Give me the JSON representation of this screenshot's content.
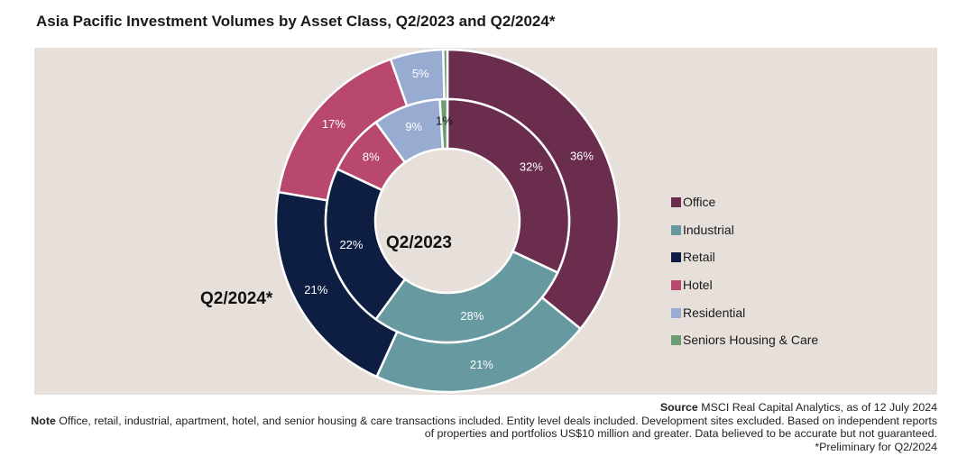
{
  "header": {
    "title": "Asia Pacific Investment Volumes by Asset Class, Q2/2023 and Q2/2024*"
  },
  "chart_data": {
    "type": "pie",
    "subtype": "nested-donut",
    "title": "Asia Pacific Investment Volumes by Asset Class, Q2/2023 and Q2/2024*",
    "categories": [
      "Office",
      "Industrial",
      "Retail",
      "Hotel",
      "Residential",
      "Seniors Housing & Care"
    ],
    "colors": [
      "#6b2d4e",
      "#6699a0",
      "#0d1e42",
      "#b8486e",
      "#98abd1",
      "#6a9e72"
    ],
    "series": [
      {
        "name": "Q2/2023",
        "ring": "inner",
        "values": [
          32,
          28,
          22,
          8,
          9,
          1
        ],
        "labels": [
          "32%",
          "28%",
          "22%",
          "8%",
          "9%",
          "1%"
        ]
      },
      {
        "name": "Q2/2024*",
        "ring": "outer",
        "values": [
          36,
          21,
          21,
          17,
          5,
          0.4
        ],
        "labels": [
          "36%",
          "21%",
          "21%",
          "17%",
          "5%",
          ""
        ]
      }
    ],
    "legend_position": "right",
    "grid": false
  },
  "footer": {
    "source_label": "Source",
    "source_text": "MSCI Real Capital Analytics, as of 12 July 2024",
    "note_label": "Note",
    "note_text": "Office, retail, industrial, apartment, hotel, and senior housing & care transactions included. Entity level deals included. Development sites excluded.  Based on independent reports of properties and portfolios US$10 million and greater. Data believed to be accurate but not guaranteed.",
    "preliminary": "*Preliminary for Q2/2024"
  }
}
